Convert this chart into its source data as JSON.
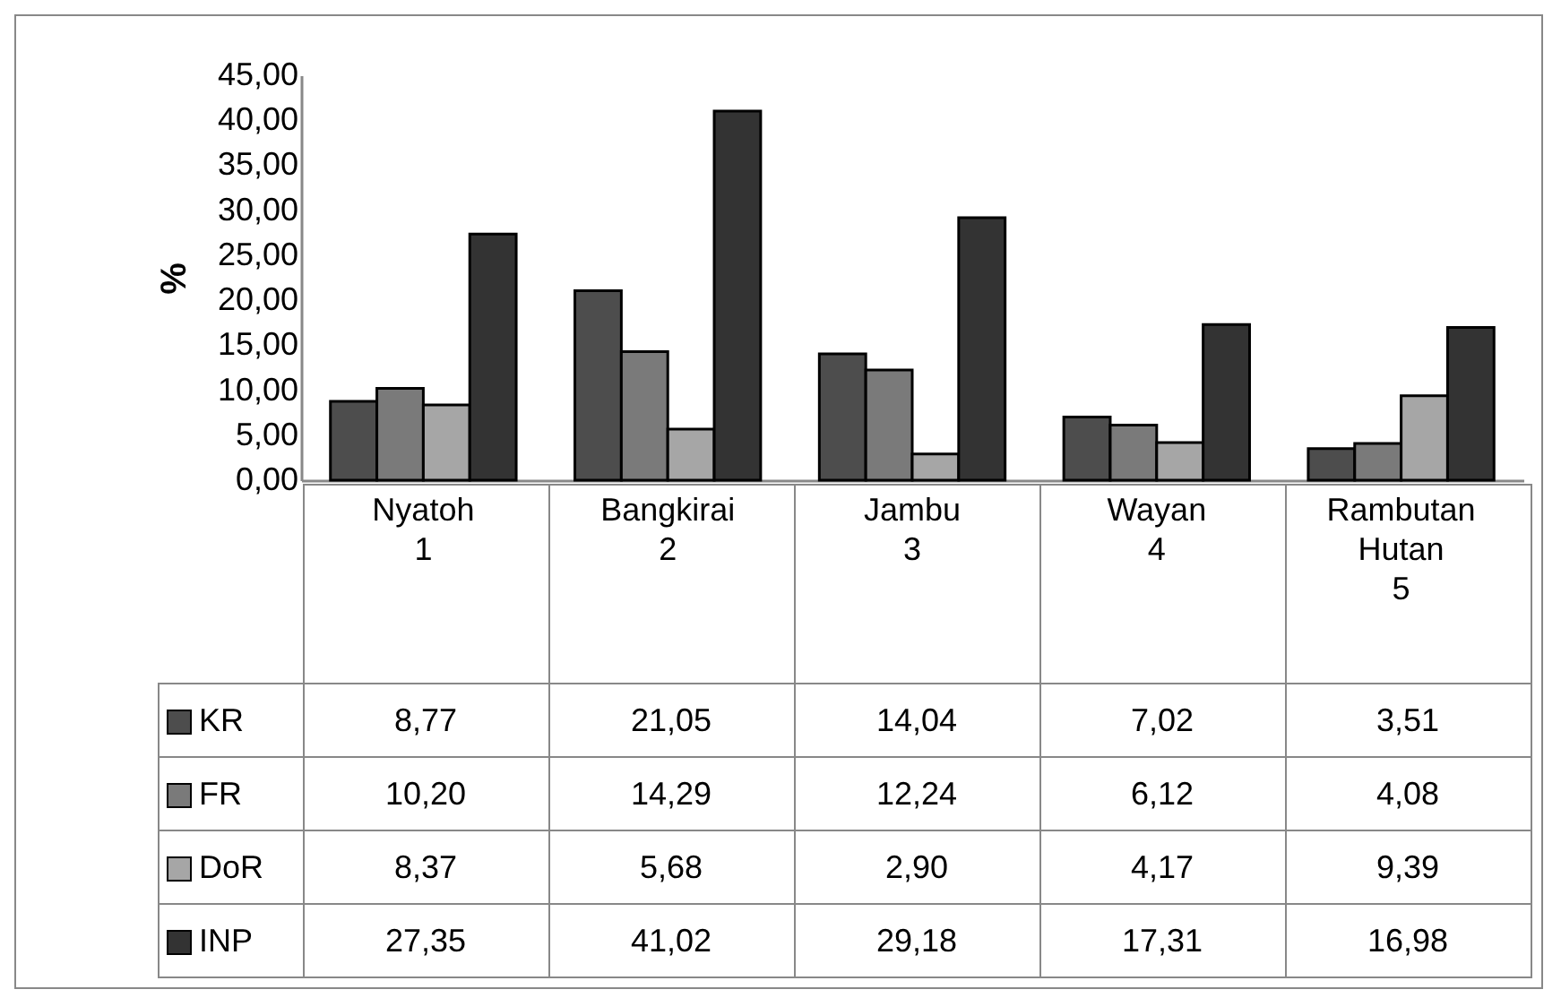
{
  "chart_data": {
    "type": "bar",
    "ylabel": "%",
    "categories": [
      "Nyatoh\n1",
      "Bangkirai\n2",
      "Jambu\n3",
      "Wayan\n4",
      "Rambutan Hutan\n5"
    ],
    "series": [
      {
        "name": "KR",
        "color": "#4d4d4d",
        "values": [
          8.77,
          21.05,
          14.04,
          7.02,
          3.51
        ],
        "value_labels": [
          "8,77",
          "21,05",
          "14,04",
          "7,02",
          "3,51"
        ]
      },
      {
        "name": "FR",
        "color": "#7a7a7a",
        "values": [
          10.2,
          14.29,
          12.24,
          6.12,
          4.08
        ],
        "value_labels": [
          "10,20",
          "14,29",
          "12,24",
          "6,12",
          "4,08"
        ]
      },
      {
        "name": "DoR",
        "color": "#a6a6a6",
        "values": [
          8.37,
          5.68,
          2.9,
          4.17,
          9.39
        ],
        "value_labels": [
          "8,37",
          "5,68",
          "2,90",
          "4,17",
          "9,39"
        ]
      },
      {
        "name": "INP",
        "color": "#333333",
        "values": [
          27.35,
          41.02,
          29.18,
          17.31,
          16.98
        ],
        "value_labels": [
          "27,35",
          "41,02",
          "29,18",
          "17,31",
          "16,98"
        ]
      }
    ],
    "ylim": [
      0,
      45
    ],
    "yticks": [
      {
        "value": 0,
        "label": "0,00"
      },
      {
        "value": 5,
        "label": "5,00"
      },
      {
        "value": 10,
        "label": "10,00"
      },
      {
        "value": 15,
        "label": "15,00"
      },
      {
        "value": 20,
        "label": "20,00"
      },
      {
        "value": 25,
        "label": "25,00"
      },
      {
        "value": 30,
        "label": "30,00"
      },
      {
        "value": 35,
        "label": "35,00"
      },
      {
        "value": 40,
        "label": "40,00"
      },
      {
        "value": 45,
        "label": "45,00"
      }
    ],
    "grid": false,
    "legend": "bottom"
  }
}
